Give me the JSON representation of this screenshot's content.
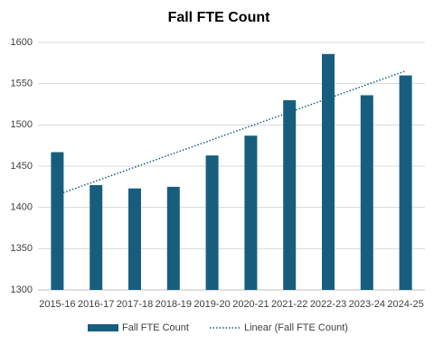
{
  "chart_data": {
    "type": "bar",
    "title": "Fall FTE Count",
    "categories": [
      "2015-16",
      "2016-17",
      "2017-18",
      "2018-19",
      "2019-20",
      "2020-21",
      "2021-22",
      "2022-23",
      "2023-24",
      "2024-25"
    ],
    "series": [
      {
        "name": "Fall FTE Count",
        "color": "#175e7e",
        "values": [
          1467,
          1427,
          1423,
          1425,
          1463,
          1487,
          1530,
          1586,
          1536,
          1560
        ]
      }
    ],
    "trendline": {
      "name": "Linear (Fall FTE Count)",
      "color": "#175e7e",
      "kind": "linear"
    },
    "ylim": [
      1300,
      1600
    ],
    "yticks": [
      1300,
      1350,
      1400,
      1450,
      1500,
      1550,
      1600
    ],
    "grid": true,
    "legend": "bottom"
  }
}
